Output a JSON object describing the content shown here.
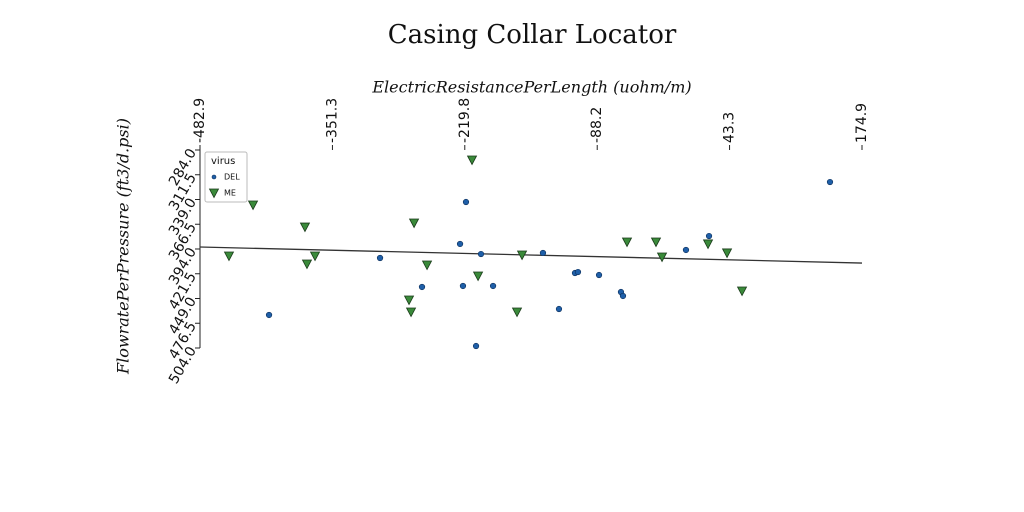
{
  "chart_data": {
    "type": "scatter",
    "title": "Casing Collar Locator",
    "x_label": "ElectricResistancePerLength (uohm/m)",
    "y_label": "FlowratePerPressure (ft3/d.psi)",
    "legend_title": "virus",
    "legend_position": "upper left",
    "xlim": [
      -482.9,
      174.9
    ],
    "xticks": [
      -482.9,
      -351.3,
      -219.8,
      -88.2,
      43.3,
      174.9
    ],
    "ylim": [
      284.0,
      504.0
    ],
    "yticks": [
      {
        "value": 284,
        "label": "284.0"
      },
      {
        "value": 311.5,
        "label": "311.5"
      },
      {
        "value": 339,
        "label": "339.0"
      },
      {
        "value": 366.5,
        "label": "366.5"
      },
      {
        "value": 394,
        "label": "394.0"
      },
      {
        "value": 421.5,
        "label": "421.5"
      },
      {
        "value": 449,
        "label": "449.0"
      },
      {
        "value": 476.5,
        "label": "476.5"
      },
      {
        "value": 504,
        "label": "504.0"
      }
    ],
    "y_inverted": true,
    "trendline": {
      "color": "#333333",
      "x": [
        -482.9,
        174.9
      ],
      "y": [
        391.8,
        409.6
      ]
    },
    "series": [
      {
        "name": "DEL",
        "marker": "circle",
        "color": "#1f5fa8",
        "x": [
          -218.6,
          -224.5,
          -203.7,
          -304.0,
          -262.3,
          -221.6,
          -191.7,
          -142.1,
          -110.3,
          -107.3,
          -86.4,
          -64.6,
          -62.6,
          -126.2,
          -208.6,
          -414.3,
          0.0,
          22.9,
          143.1
        ],
        "values": [
          341.8,
          388.4,
          399.6,
          404.0,
          436.2,
          435.1,
          435.1,
          398.4,
          420.7,
          419.6,
          422.9,
          441.8,
          446.2,
          460.7,
          501.8,
          467.3,
          395.1,
          379.6,
          319.6
        ]
      },
      {
        "name": "ME",
        "marker": "triangle",
        "color": "#3a8a3a",
        "x": [
          -454.1,
          -430.2,
          -378.6,
          -376.6,
          -368.6,
          -270.2,
          -257.3,
          -275.2,
          -273.2,
          -212.6,
          -206.6,
          -167.9,
          -162.9,
          -58.6,
          -29.8,
          -23.8,
          21.9,
          40.8,
          55.7
        ],
        "values": [
          401.8,
          345.1,
          369.6,
          410.7,
          401.8,
          365.1,
          411.8,
          450.7,
          464.0,
          295.1,
          424.0,
          464.0,
          400.7,
          386.2,
          386.2,
          402.9,
          388.4,
          398.4,
          440.7
        ]
      }
    ]
  }
}
